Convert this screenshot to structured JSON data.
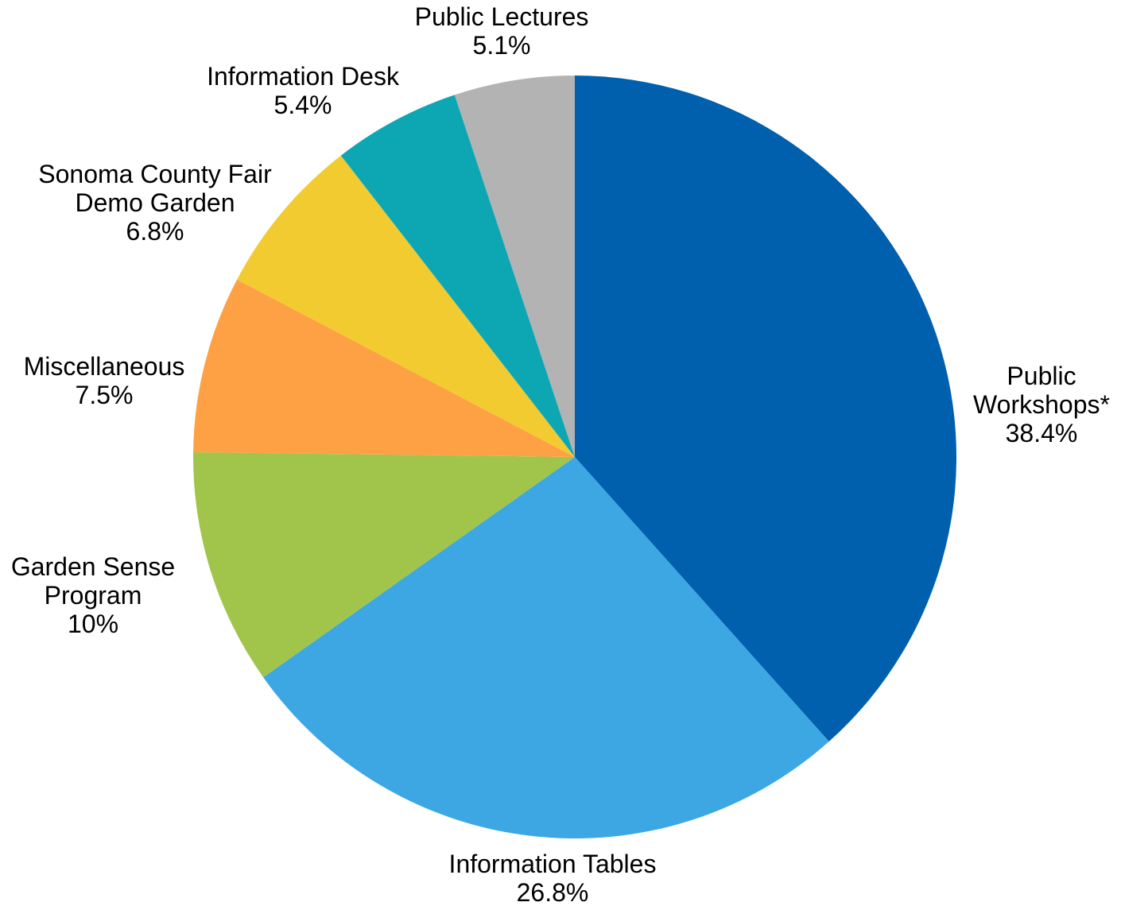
{
  "chart_data": {
    "type": "pie",
    "title": "",
    "start_angle_deg": 0,
    "direction": "clockwise",
    "slices": [
      {
        "label_lines": [
          "Public",
          "Workshops*"
        ],
        "value": 38.4,
        "value_label": "38.4%",
        "color": "#0060AE"
      },
      {
        "label_lines": [
          "Information Tables"
        ],
        "value": 26.8,
        "value_label": "26.8%",
        "color": "#3CA7E3"
      },
      {
        "label_lines": [
          "Garden Sense",
          "Program"
        ],
        "value": 10,
        "value_label": "10%",
        "color": "#A1C54B"
      },
      {
        "label_lines": [
          "Miscellaneous"
        ],
        "value": 7.5,
        "value_label": "7.5%",
        "color": "#FEA144"
      },
      {
        "label_lines": [
          "Sonoma County Fair",
          "Demo Garden"
        ],
        "value": 6.8,
        "value_label": "6.8%",
        "color": "#F2CB30"
      },
      {
        "label_lines": [
          "Information Desk"
        ],
        "value": 5.4,
        "value_label": "5.4%",
        "color": "#0DA7B4"
      },
      {
        "label_lines": [
          "Public Lectures"
        ],
        "value": 5.1,
        "value_label": "5.1%",
        "color": "#B3B3B3"
      }
    ]
  }
}
